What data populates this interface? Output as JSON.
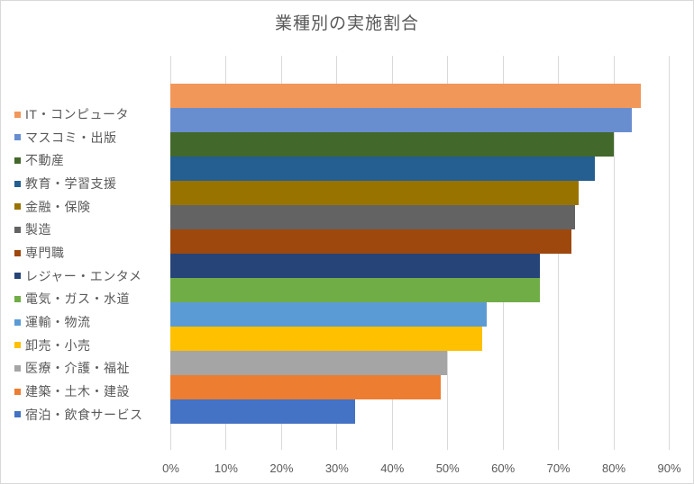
{
  "chart_data": {
    "type": "bar",
    "orientation": "horizontal",
    "title": "業種別の実施割合",
    "xlabel": "",
    "ylabel": "",
    "xlim": [
      0,
      90
    ],
    "x_ticks": [
      "0%",
      "10%",
      "20%",
      "30%",
      "40%",
      "50%",
      "60%",
      "70%",
      "80%",
      "90%"
    ],
    "grid": true,
    "legend_position": "left",
    "value_unit": "%",
    "categories": [
      "IT・コンピュータ",
      "マスコミ・出版",
      "不動産",
      "教育・学習支援",
      "金融・保険",
      "製造",
      "専門職",
      "レジャー・エンタメ",
      "電気・ガス・水道",
      "運輸・物流",
      "卸売・小売",
      "医療・介護・福祉",
      "建築・土木・建設",
      "宿泊・飲食サービス"
    ],
    "values": [
      84.9,
      83.3,
      80.1,
      76.6,
      73.8,
      73.0,
      72.4,
      66.7,
      66.7,
      57.1,
      56.3,
      50.0,
      48.9,
      33.3
    ],
    "colors": [
      "#F1975A",
      "#698ED0",
      "#43682B",
      "#255E91",
      "#997300",
      "#636363",
      "#9E480E",
      "#264478",
      "#70AD47",
      "#5B9BD5",
      "#FFC000",
      "#A5A5A5",
      "#ED7D31",
      "#4472C4"
    ]
  },
  "gridline_color": "#D9D9D9",
  "text_color": "#595959"
}
